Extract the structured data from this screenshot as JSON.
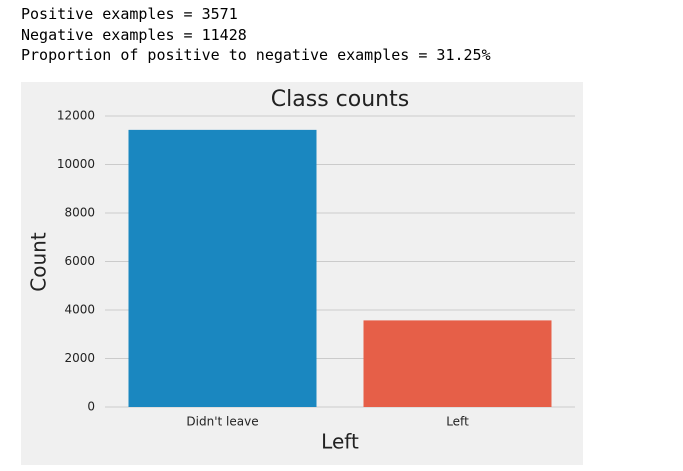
{
  "output_text": [
    "Positive examples = 3571",
    "Negative examples = 11428",
    "Proportion of positive to negative examples = 31.25%"
  ],
  "chart_data": {
    "type": "bar",
    "title": "Class counts",
    "x_label": "Left",
    "y_label": "Count",
    "categories": [
      "Didn't leave",
      "Left"
    ],
    "values": [
      11428,
      3571
    ],
    "colors": [
      "#1a87c0",
      "#e65f48"
    ],
    "ylim": [
      0,
      12000
    ],
    "yticks": [
      0,
      2000,
      4000,
      6000,
      8000,
      10000,
      12000
    ],
    "grid": true
  }
}
